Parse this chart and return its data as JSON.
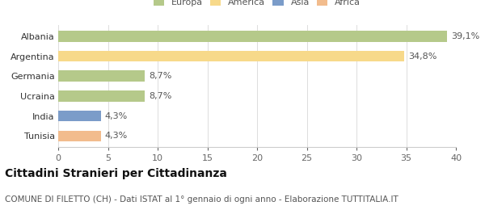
{
  "categories": [
    "Tunisia",
    "India",
    "Ucraina",
    "Germania",
    "Argentina",
    "Albania"
  ],
  "values": [
    4.3,
    4.3,
    8.7,
    8.7,
    34.8,
    39.1
  ],
  "labels": [
    "4,3%",
    "4,3%",
    "8,7%",
    "8,7%",
    "34,8%",
    "39,1%"
  ],
  "bar_colors": [
    "#f2bc8d",
    "#7b9cc9",
    "#b5c98a",
    "#b5c98a",
    "#f7d98a",
    "#b5c98a"
  ],
  "legend_items": [
    {
      "label": "Europa",
      "color": "#b5c98a"
    },
    {
      "label": "America",
      "color": "#f7d98a"
    },
    {
      "label": "Asia",
      "color": "#7b9cc9"
    },
    {
      "label": "Africa",
      "color": "#f2bc8d"
    }
  ],
  "xlim": [
    0,
    40
  ],
  "xticks": [
    0,
    5,
    10,
    15,
    20,
    25,
    30,
    35,
    40
  ],
  "title": "Cittadini Stranieri per Cittadinanza",
  "subtitle": "COMUNE DI FILETTO (CH) - Dati ISTAT al 1° gennaio di ogni anno - Elaborazione TUTTITALIA.IT",
  "background_color": "#ffffff",
  "plot_background": "#ffffff",
  "title_fontsize": 10,
  "subtitle_fontsize": 7.5,
  "label_fontsize": 8,
  "tick_fontsize": 8
}
